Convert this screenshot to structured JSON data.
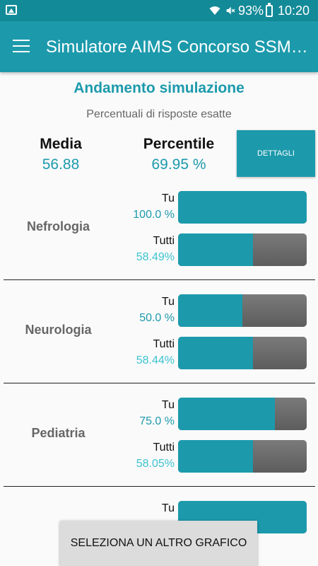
{
  "status_bar": {
    "battery_percent": "93%",
    "time": "10:20",
    "icons": [
      "image-icon",
      "wifi-icon",
      "mute-icon",
      "battery-icon"
    ]
  },
  "app_bar": {
    "title": "Simulatore AIMS Concorso SSM…",
    "menu_icon": "hamburger-menu-icon"
  },
  "header": {
    "heading": "Andamento simulazione",
    "subheading": "Percentuali di risposte esatte",
    "media_label": "Media",
    "media_value": "56.88",
    "percentile_label": "Percentile",
    "percentile_value": "69.95 %",
    "details_button": "DETTAGLI"
  },
  "subjects": [
    {
      "name": "Nefrologia",
      "tu": {
        "label": "Tu",
        "percent_text": "100.0 %",
        "value": 100.0
      },
      "tutti": {
        "label": "Tutti",
        "percent_text": "58.49%",
        "value": 58.49
      }
    },
    {
      "name": "Neurologia",
      "tu": {
        "label": "Tu",
        "percent_text": "50.0 %",
        "value": 50.0
      },
      "tutti": {
        "label": "Tutti",
        "percent_text": "58.44%",
        "value": 58.44
      }
    },
    {
      "name": "Pediatria",
      "tu": {
        "label": "Tu",
        "percent_text": "75.0 %",
        "value": 75.0
      },
      "tutti": {
        "label": "Tutti",
        "percent_text": "58.05%",
        "value": 58.05
      }
    },
    {
      "name": "",
      "tu": {
        "label": "Tu",
        "percent_text": "",
        "value": 100.0
      }
    }
  ],
  "bottom_button": "SELEZIONA UN ALTRO GRAFICO",
  "colors": {
    "accent": "#1c9aac",
    "status_bar": "#138a97",
    "bar_background": "#6b6b6b",
    "tutti_text": "#3cc3d0"
  }
}
